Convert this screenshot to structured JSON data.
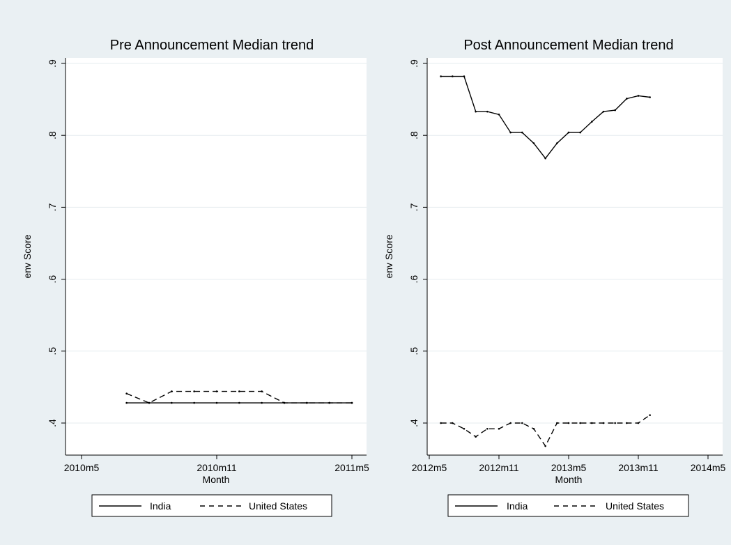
{
  "chart_data": [
    {
      "type": "line",
      "title": "Pre Announcement Median trend",
      "xlabel": "Month",
      "ylabel": "env Score",
      "xlim": [
        "2010m5",
        "2011m5"
      ],
      "ylim": [
        0.38,
        0.92
      ],
      "x_ticks": [
        "2010m5",
        "2010m11",
        "2011m5"
      ],
      "y_ticks": [
        ".4",
        ".5",
        ".6",
        ".7",
        ".8",
        ".9"
      ],
      "grid": true,
      "legend": {
        "position": "bottom",
        "entries": [
          "India",
          "United States"
        ]
      },
      "series": [
        {
          "name": "India",
          "style": "solid",
          "points": [
            [
              "2010m7",
              0.428
            ],
            [
              "2010m8",
              0.428
            ],
            [
              "2010m9",
              0.428
            ],
            [
              "2010m10",
              0.428
            ],
            [
              "2010m11",
              0.428
            ],
            [
              "2010m12",
              0.428
            ],
            [
              "2011m1",
              0.428
            ],
            [
              "2011m2",
              0.428
            ],
            [
              "2011m3",
              0.428
            ],
            [
              "2011m4",
              0.428
            ],
            [
              "2011m5",
              0.428
            ]
          ]
        },
        {
          "name": "United States",
          "style": "dashed",
          "points": [
            [
              "2010m7",
              0.441
            ],
            [
              "2010m8",
              0.428
            ],
            [
              "2010m9",
              0.444
            ],
            [
              "2010m10",
              0.444
            ],
            [
              "2010m11",
              0.444
            ],
            [
              "2010m12",
              0.444
            ],
            [
              "2011m1",
              0.444
            ],
            [
              "2011m2",
              0.428
            ],
            [
              "2011m3",
              0.428
            ],
            [
              "2011m4",
              0.428
            ],
            [
              "2011m5",
              0.428
            ]
          ]
        }
      ]
    },
    {
      "type": "line",
      "title": "Post Announcement Median trend",
      "xlabel": "Month",
      "ylabel": "env Score",
      "xlim": [
        "2012m5",
        "2014m5"
      ],
      "ylim": [
        0.36,
        0.92
      ],
      "x_ticks": [
        "2012m5",
        "2012m11",
        "2013m5",
        "2013m11",
        "2014m5"
      ],
      "y_ticks": [
        ".4",
        ".5",
        ".6",
        ".7",
        ".8",
        ".9"
      ],
      "grid": true,
      "legend": {
        "position": "bottom",
        "entries": [
          "India",
          "United States"
        ]
      },
      "series": [
        {
          "name": "India",
          "style": "solid",
          "points": [
            [
              "2012m6",
              0.882
            ],
            [
              "2012m7",
              0.882
            ],
            [
              "2012m8",
              0.882
            ],
            [
              "2012m9",
              0.833
            ],
            [
              "2012m10",
              0.833
            ],
            [
              "2012m11",
              0.829
            ],
            [
              "2012m12",
              0.804
            ],
            [
              "2013m1",
              0.804
            ],
            [
              "2013m2",
              0.789
            ],
            [
              "2013m3",
              0.768
            ],
            [
              "2013m4",
              0.789
            ],
            [
              "2013m5",
              0.804
            ],
            [
              "2013m6",
              0.804
            ],
            [
              "2013m7",
              0.819
            ],
            [
              "2013m8",
              0.833
            ],
            [
              "2013m9",
              0.835
            ],
            [
              "2013m10",
              0.851
            ],
            [
              "2013m11",
              0.855
            ],
            [
              "2013m12",
              0.853
            ]
          ]
        },
        {
          "name": "United States",
          "style": "dashed",
          "points": [
            [
              "2012m6",
              0.4
            ],
            [
              "2012m7",
              0.4
            ],
            [
              "2012m8",
              0.392
            ],
            [
              "2012m9",
              0.381
            ],
            [
              "2012m10",
              0.392
            ],
            [
              "2012m11",
              0.392
            ],
            [
              "2012m12",
              0.4
            ],
            [
              "2013m1",
              0.4
            ],
            [
              "2013m2",
              0.392
            ],
            [
              "2013m3",
              0.368
            ],
            [
              "2013m4",
              0.4
            ],
            [
              "2013m5",
              0.4
            ],
            [
              "2013m6",
              0.4
            ],
            [
              "2013m7",
              0.4
            ],
            [
              "2013m8",
              0.4
            ],
            [
              "2013m9",
              0.4
            ],
            [
              "2013m10",
              0.4
            ],
            [
              "2013m11",
              0.4
            ],
            [
              "2013m12",
              0.411
            ]
          ]
        }
      ]
    }
  ]
}
